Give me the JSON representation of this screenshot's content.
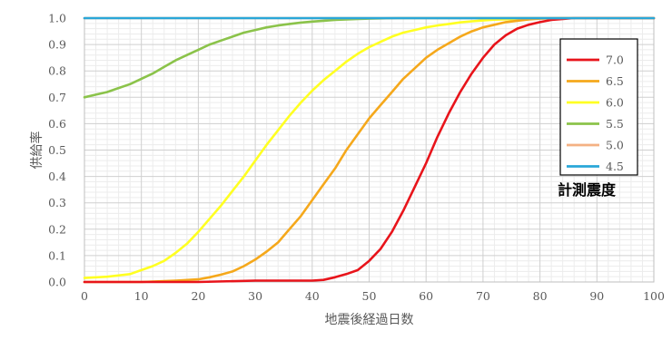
{
  "chart_data": {
    "type": "line",
    "xlabel": "地震後経過日数",
    "ylabel": "供給率",
    "xlim": [
      0,
      100
    ],
    "ylim": [
      0,
      1.0
    ],
    "x_ticks": [
      "0",
      "10",
      "20",
      "30",
      "40",
      "50",
      "60",
      "70",
      "80",
      "90",
      "100"
    ],
    "y_ticks": [
      "0.0",
      "0.1",
      "0.2",
      "0.3",
      "0.4",
      "0.5",
      "0.6",
      "0.7",
      "0.8",
      "0.9",
      "1.0"
    ],
    "grid": true,
    "legend_title": "計測震度",
    "legend_position": "right",
    "series": [
      {
        "name": "7.0",
        "color": "#e8141b",
        "x": [
          0,
          10,
          20,
          30,
          40,
          42,
          44,
          46,
          48,
          50,
          52,
          54,
          56,
          58,
          60,
          62,
          64,
          66,
          68,
          70,
          72,
          74,
          76,
          78,
          80,
          82,
          84,
          86,
          90,
          100
        ],
        "y": [
          0,
          0,
          0,
          0.005,
          0.005,
          0.008,
          0.018,
          0.03,
          0.045,
          0.08,
          0.125,
          0.19,
          0.27,
          0.36,
          0.45,
          0.55,
          0.64,
          0.72,
          0.79,
          0.85,
          0.9,
          0.935,
          0.96,
          0.975,
          0.985,
          0.993,
          0.997,
          1.0,
          1.0,
          1.0
        ]
      },
      {
        "name": "6.5",
        "color": "#f5a81b",
        "x": [
          0,
          10,
          16,
          20,
          22,
          24,
          26,
          28,
          30,
          32,
          34,
          36,
          38,
          40,
          42,
          44,
          46,
          48,
          50,
          52,
          54,
          56,
          58,
          60,
          62,
          64,
          66,
          68,
          70,
          72,
          74,
          76,
          78,
          80,
          84,
          90,
          100
        ],
        "y": [
          0,
          0,
          0.005,
          0.01,
          0.018,
          0.028,
          0.04,
          0.06,
          0.085,
          0.115,
          0.15,
          0.2,
          0.25,
          0.31,
          0.37,
          0.43,
          0.5,
          0.56,
          0.62,
          0.67,
          0.72,
          0.77,
          0.81,
          0.85,
          0.88,
          0.905,
          0.93,
          0.95,
          0.965,
          0.975,
          0.985,
          0.99,
          0.995,
          0.998,
          1.0,
          1.0,
          1.0
        ]
      },
      {
        "name": "6.0",
        "color": "#ffff22",
        "x": [
          0,
          4,
          8,
          10,
          12,
          14,
          16,
          18,
          20,
          22,
          24,
          26,
          28,
          30,
          32,
          34,
          36,
          38,
          40,
          42,
          44,
          46,
          48,
          50,
          52,
          54,
          56,
          58,
          60,
          62,
          64,
          66,
          68,
          70,
          72,
          76,
          80,
          85,
          90,
          100
        ],
        "y": [
          0.015,
          0.02,
          0.03,
          0.045,
          0.06,
          0.08,
          0.11,
          0.145,
          0.19,
          0.24,
          0.29,
          0.345,
          0.4,
          0.46,
          0.52,
          0.575,
          0.63,
          0.68,
          0.725,
          0.765,
          0.8,
          0.835,
          0.865,
          0.89,
          0.91,
          0.93,
          0.945,
          0.955,
          0.965,
          0.972,
          0.978,
          0.984,
          0.988,
          0.991,
          0.994,
          0.997,
          0.999,
          1.0,
          1.0,
          1.0
        ]
      },
      {
        "name": "5.5",
        "color": "#8bc34a",
        "x": [
          0,
          2,
          4,
          6,
          8,
          10,
          12,
          14,
          16,
          18,
          20,
          22,
          24,
          26,
          28,
          30,
          32,
          34,
          36,
          38,
          40,
          42,
          44,
          46,
          48,
          50,
          55,
          60,
          100
        ],
        "y": [
          0.7,
          0.71,
          0.72,
          0.735,
          0.75,
          0.77,
          0.79,
          0.815,
          0.84,
          0.86,
          0.88,
          0.9,
          0.915,
          0.93,
          0.945,
          0.955,
          0.965,
          0.972,
          0.978,
          0.983,
          0.987,
          0.99,
          0.993,
          0.995,
          0.997,
          0.998,
          1.0,
          1.0,
          1.0
        ]
      },
      {
        "name": "5.0",
        "color": "#f4b183",
        "x": [
          0,
          100
        ],
        "y": [
          1.0,
          1.0
        ]
      },
      {
        "name": "4.5",
        "color": "#2aa7d8",
        "x": [
          0,
          100
        ],
        "y": [
          1.0,
          1.0
        ]
      }
    ]
  }
}
